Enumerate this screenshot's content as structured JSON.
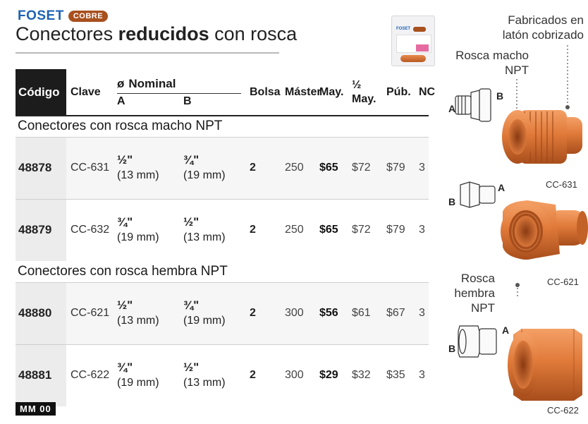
{
  "brand": {
    "name": "FOSET",
    "badge": "COBRE"
  },
  "title": {
    "normal": "Conectores ",
    "bold": "reducidos",
    "rest": " con rosca"
  },
  "table": {
    "headers": {
      "codigo": "Código",
      "clave": "Clave",
      "nominal_symbol": "ø",
      "nominal": "Nominal",
      "a": "A",
      "b": "B",
      "bolsa": "Bolsa",
      "master": "Máster",
      "may": "May.",
      "half_may_top": "½",
      "half_may_bottom": "May.",
      "pub": "Púb.",
      "nc": "NC"
    },
    "sections": [
      {
        "title": "Conectores con rosca macho NPT",
        "rows": [
          {
            "codigo": "48878",
            "clave": "CC-631",
            "a_frac": "½\"",
            "a_mm": "(13 mm)",
            "b_frac": "¾\"",
            "b_mm": "(19 mm)",
            "bolsa": "2",
            "master": "250",
            "may": "$65",
            "half_may": "$72",
            "pub": "$79",
            "nc": "3"
          },
          {
            "codigo": "48879",
            "clave": "CC-632",
            "a_frac": "¾\"",
            "a_mm": "(19 mm)",
            "b_frac": "½\"",
            "b_mm": "(13 mm)",
            "bolsa": "2",
            "master": "250",
            "may": "$65",
            "half_may": "$72",
            "pub": "$79",
            "nc": "3"
          }
        ]
      },
      {
        "title": "Conectores con rosca hembra NPT",
        "rows": [
          {
            "codigo": "48880",
            "clave": "CC-621",
            "a_frac": "½\"",
            "a_mm": "(13 mm)",
            "b_frac": "¾\"",
            "b_mm": "(19 mm)",
            "bolsa": "2",
            "master": "300",
            "may": "$56",
            "half_may": "$61",
            "pub": "$67",
            "nc": "3"
          },
          {
            "codigo": "48881",
            "clave": "CC-622",
            "a_frac": "¾\"",
            "a_mm": "(19 mm)",
            "b_frac": "½\"",
            "b_mm": "(13 mm)",
            "bolsa": "2",
            "master": "300",
            "may": "$29",
            "half_may": "$32",
            "pub": "$35",
            "nc": "3"
          }
        ]
      }
    ]
  },
  "footer": {
    "code": "MM 00"
  },
  "side": {
    "fabricados": [
      "Fabricados en",
      "latón cobrizado"
    ],
    "macho": [
      "Rosca macho",
      "NPT"
    ],
    "hembra": [
      "Rosca",
      "hembra",
      "NPT"
    ],
    "captions": {
      "cc631": "CC-631",
      "cc621": "CC-621",
      "cc622": "CC-622"
    },
    "labels": {
      "a": "A",
      "b": "B"
    }
  },
  "package": {
    "logo": "FOSET"
  },
  "colors": {
    "brand_blue": "#1d62b4",
    "copper": "#c8692c",
    "badge": "#a8501e"
  }
}
